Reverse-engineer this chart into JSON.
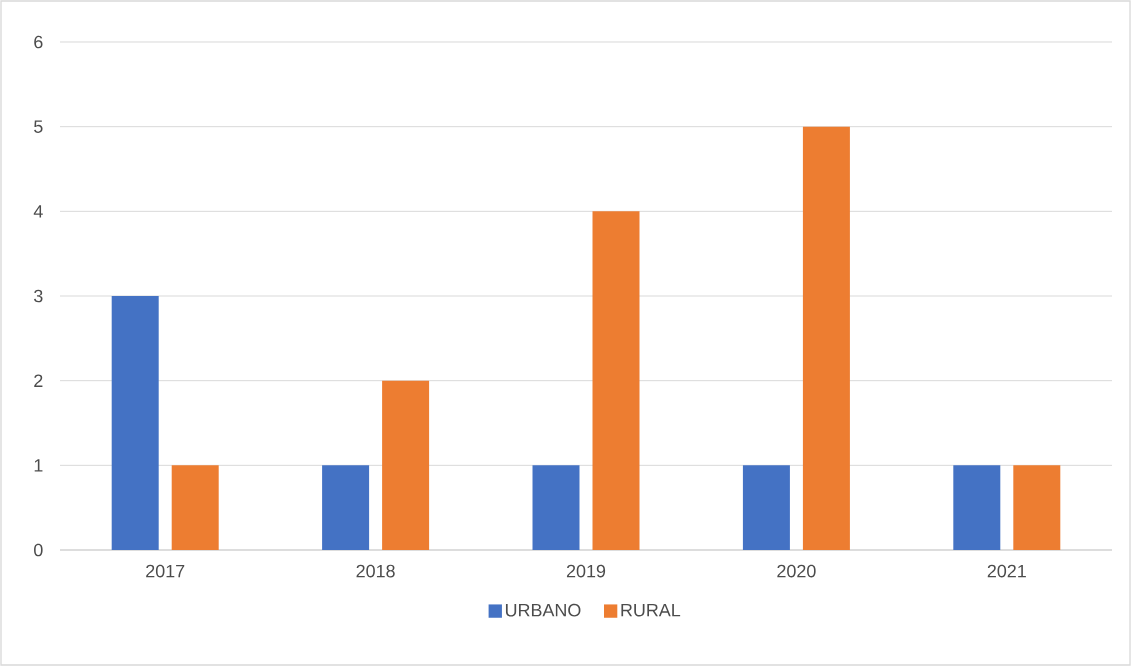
{
  "chart_data": {
    "type": "bar",
    "categories": [
      "2017",
      "2018",
      "2019",
      "2020",
      "2021"
    ],
    "series": [
      {
        "name": "URBANO",
        "color": "#4472c4",
        "values": [
          3,
          1,
          1,
          1,
          1
        ]
      },
      {
        "name": "RURAL",
        "color": "#ed7d31",
        "values": [
          1,
          2,
          4,
          5,
          1
        ]
      }
    ],
    "ylim": [
      0,
      6
    ],
    "yticks": [
      0,
      1,
      2,
      3,
      4,
      5,
      6
    ],
    "grid": "y",
    "legend": "bottom"
  }
}
